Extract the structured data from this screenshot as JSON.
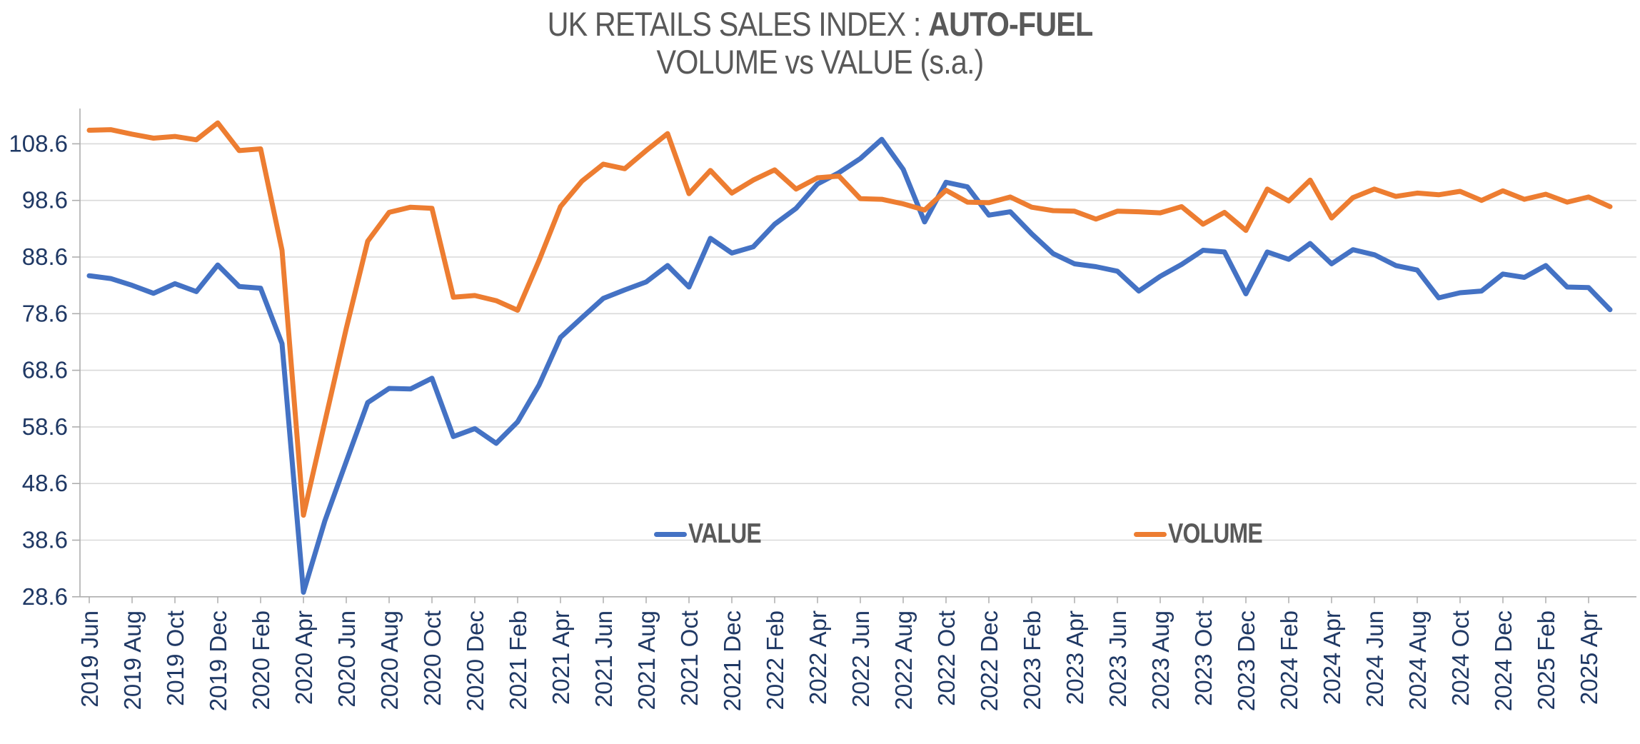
{
  "title": {
    "line1_normal": "UK RETAILS SALES INDEX : ",
    "line1_bold": "AUTO-FUEL",
    "line2": "VOLUME vs VALUE (s.a.)"
  },
  "legend": {
    "items": [
      {
        "label": "VALUE",
        "color": "#4472C4"
      },
      {
        "label": "VOLUME",
        "color": "#ED7D31"
      }
    ]
  },
  "colors": {
    "value_line": "#4472C4",
    "volume_line": "#ED7D31",
    "gridline": "#D9D9D9",
    "axis_line": "#ADADAD",
    "axis_label_text": "#1F3864",
    "title_text": "#595959"
  },
  "chart_data": {
    "type": "line",
    "title": "UK RETAILS SALES INDEX : AUTO-FUEL",
    "subtitle": "VOLUME vs VALUE (s.a.)",
    "grid": "horizontal",
    "legend_position": "inside-bottom",
    "x_frequency": "monthly",
    "x_first_point": "2019 Jun",
    "x_last_point": "2025 May",
    "x_tick_every_n_points": 2,
    "x_tick_labels": [
      "2019 Jun",
      "2019 Aug",
      "2019 Oct",
      "2019 Dec",
      "2020 Feb",
      "2020 Apr",
      "2020 Jun",
      "2020 Aug",
      "2020 Oct",
      "2020 Dec",
      "2021 Feb",
      "2021 Apr",
      "2021 Jun",
      "2021 Aug",
      "2021 Oct",
      "2021 Dec",
      "2022 Feb",
      "2022 Apr",
      "2022 Jun",
      "2022 Aug",
      "2022 Oct",
      "2022 Dec",
      "2023 Feb",
      "2023 Apr",
      "2023 Jun",
      "2023 Aug",
      "2023 Oct",
      "2023 Dec",
      "2024 Feb",
      "2024 Apr",
      "2024 Jun",
      "2024 Aug",
      "2024 Oct",
      "2024 Dec",
      "2025 Feb",
      "2025 Apr"
    ],
    "y_ticks": [
      108.6,
      98.6,
      88.6,
      78.6,
      68.6,
      58.6,
      48.6,
      38.6,
      28.6
    ],
    "ylim": [
      28.6,
      114.8
    ],
    "series": [
      {
        "name": "VALUE",
        "color": "#4472C4",
        "values": [
          85.3,
          84.8,
          83.6,
          82.2,
          83.9,
          82.5,
          87.2,
          83.4,
          83.1,
          73.3,
          29.4,
          42.0,
          52.5,
          62.9,
          65.4,
          65.3,
          67.2,
          56.9,
          58.3,
          55.7,
          59.5,
          66.0,
          74.4,
          77.9,
          81.3,
          82.8,
          84.2,
          87.1,
          83.3,
          91.9,
          89.3,
          90.4,
          94.4,
          97.2,
          101.5,
          103.5,
          106.0,
          109.4,
          104.1,
          94.8,
          101.8,
          101.0,
          96.0,
          96.6,
          92.7,
          89.2,
          87.4,
          86.9,
          86.1,
          82.6,
          85.2,
          87.3,
          89.8,
          89.5,
          82.1,
          89.5,
          88.2,
          91.0,
          87.4,
          89.9,
          89.0,
          87.1,
          86.3,
          81.4,
          82.3,
          82.6,
          85.6,
          85.0,
          87.1,
          83.3,
          83.2,
          79.3
        ]
      },
      {
        "name": "VOLUME",
        "color": "#ED7D31",
        "values": [
          111.0,
          111.1,
          110.3,
          109.6,
          109.9,
          109.3,
          112.3,
          107.4,
          107.7,
          89.8,
          43.0,
          59.5,
          76.0,
          91.4,
          96.5,
          97.4,
          97.2,
          81.5,
          81.8,
          80.9,
          79.2,
          88.0,
          97.5,
          102.0,
          105.0,
          104.2,
          107.4,
          110.4,
          99.8,
          103.9,
          99.9,
          102.2,
          104.0,
          100.6,
          102.6,
          102.9,
          98.9,
          98.8,
          98.0,
          96.9,
          100.4,
          98.3,
          98.2,
          99.2,
          97.4,
          96.8,
          96.7,
          95.3,
          96.7,
          96.6,
          96.4,
          97.5,
          94.4,
          96.5,
          93.3,
          100.6,
          98.5,
          102.2,
          95.5,
          99.1,
          100.6,
          99.3,
          99.9,
          99.6,
          100.2,
          98.6,
          100.3,
          98.8,
          99.7,
          98.3,
          99.2,
          97.5
        ]
      }
    ]
  }
}
